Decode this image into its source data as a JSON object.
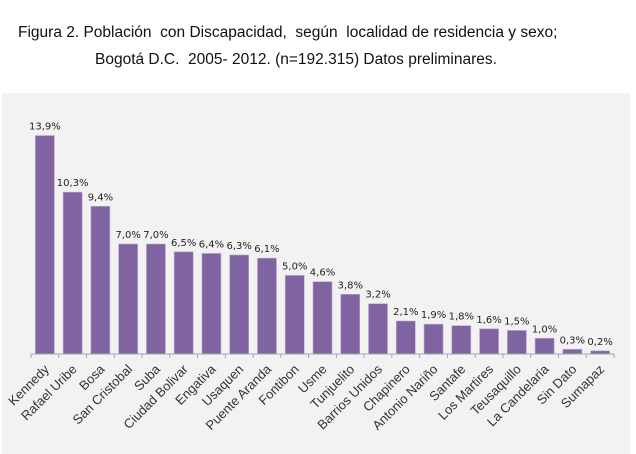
{
  "title_line1": "Figura 2. Población  con Discapacidad,  según  localidad de residencia y sexo;",
  "title_line2": "Bogotá D.C.  2005- 2012. (n=192.315) Datos preliminares.",
  "colors": {
    "bar": "#8064a2",
    "background": "#f2f2f2",
    "axis": "#a6a6a6"
  },
  "chart_data": {
    "type": "bar",
    "title": "Figura 2. Población con Discapacidad, según localidad de residencia y sexo; Bogotá D.C. 2005- 2012. (n=192.315) Datos preliminares.",
    "xlabel": "",
    "ylabel": "",
    "ylim": [
      0,
      14
    ],
    "grid": false,
    "categories": [
      "Kennedy",
      "Rafael Uribe",
      "Bosa",
      "San Cristobal",
      "Suba",
      "Ciudad Bolivar",
      "Engativa",
      "Usaquen",
      "Puente Aranda",
      "Fontibon",
      "Usme",
      "Tunjuelito",
      "Barrios Unidos",
      "Chapinero",
      "Antonio Nariño",
      "Santafe",
      "Los Martires",
      "Teusaquillo",
      "La Candelaria",
      "Sin Dato",
      "Sumapaz"
    ],
    "values": [
      13.9,
      10.3,
      9.4,
      7.0,
      7.0,
      6.5,
      6.4,
      6.3,
      6.1,
      5.0,
      4.6,
      3.8,
      3.2,
      2.1,
      1.9,
      1.8,
      1.6,
      1.5,
      1.0,
      0.3,
      0.2
    ],
    "data_labels": [
      "13,9%",
      "10,3%",
      "9,4%",
      "7,0%",
      "7,0%",
      "6,5%",
      "6,4%",
      "6,3%",
      "6,1%",
      "5,0%",
      "4,6%",
      "3,8%",
      "3,2%",
      "2,1%",
      "1,9%",
      "1,8%",
      "1,6%",
      "1,5%",
      "1,0%",
      "0,3%",
      "0,2%"
    ]
  }
}
